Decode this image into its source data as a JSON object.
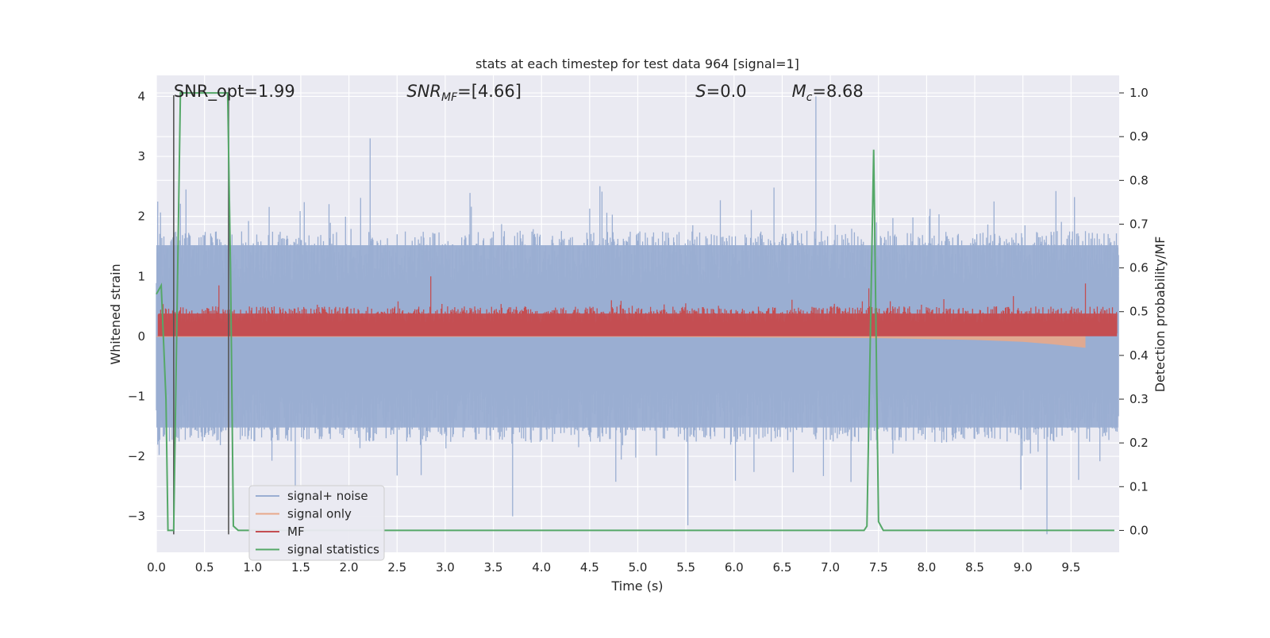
{
  "chart_data": {
    "type": "line",
    "title": "stats at each timestep for test data 964 [signal=1]",
    "xlabel": "Time (s)",
    "ylabel_left": "Whitened strain",
    "ylabel_right": "Detection probability/MF",
    "xlim": [
      0.0,
      10.0
    ],
    "ylim_left": [
      -3.6,
      4.35
    ],
    "ylim_right": [
      -0.05,
      1.04
    ],
    "x_ticks": [
      "0.0",
      "0.5",
      "1.0",
      "1.5",
      "2.0",
      "2.5",
      "3.0",
      "3.5",
      "4.0",
      "4.5",
      "5.0",
      "5.5",
      "6.0",
      "6.5",
      "7.0",
      "7.5",
      "8.0",
      "8.5",
      "9.0",
      "9.5"
    ],
    "y_ticks_left": [
      "−3",
      "−2",
      "−1",
      "0",
      "1",
      "2",
      "3",
      "4"
    ],
    "y_ticks_right": [
      "0.0",
      "0.1",
      "0.2",
      "0.3",
      "0.4",
      "0.5",
      "0.6",
      "0.7",
      "0.8",
      "0.9",
      "1.0"
    ],
    "grid": true,
    "legend_position": "lower-left",
    "annotations": [
      {
        "text": "SNR_opt=1.99",
        "x": 0.18,
        "y": 4.1
      },
      {
        "text": "SNR_MF=[4.66]",
        "x": 2.6,
        "y": 4.1
      },
      {
        "text": "S=0.0",
        "x": 5.6,
        "y": 4.1
      },
      {
        "text": "M_c=8.68",
        "x": 6.6,
        "y": 4.1
      }
    ],
    "vertical_lines": [
      0.18,
      0.75
    ],
    "series": [
      {
        "name": "signal+ noise",
        "axis": "left",
        "color": "#9aaed2",
        "kind": "noise-band",
        "x_range": [
          0.0,
          10.0
        ],
        "amplitude_typical": 1.6,
        "peak_values": [
          {
            "x": 6.85,
            "y": 4.0
          },
          {
            "x": 2.22,
            "y": 3.3
          },
          {
            "x": 0.75,
            "y": -3.0
          },
          {
            "x": 5.52,
            "y": -3.15
          },
          {
            "x": 9.25,
            "y": -3.3
          },
          {
            "x": 3.7,
            "y": -3.0
          }
        ]
      },
      {
        "name": "signal only",
        "axis": "left",
        "color": "#e8a88a",
        "kind": "chirp",
        "points": [
          [
            0.0,
            0.0
          ],
          [
            2.0,
            0.0
          ],
          [
            5.0,
            0.0
          ],
          [
            7.5,
            -0.02
          ],
          [
            8.5,
            -0.05
          ],
          [
            9.0,
            -0.08
          ],
          [
            9.3,
            -0.12
          ],
          [
            9.65,
            -0.18
          ]
        ]
      },
      {
        "name": "MF",
        "axis": "left",
        "color": "#c44e52",
        "kind": "mf-band",
        "baseline": 0.0,
        "typical_max": 0.6,
        "peak_values": [
          {
            "x": 2.85,
            "y": 1.0
          },
          {
            "x": 7.4,
            "y": 0.8
          },
          {
            "x": 9.65,
            "y": 0.88
          },
          {
            "x": 0.65,
            "y": 0.85
          }
        ]
      },
      {
        "name": "signal statistics",
        "axis": "right",
        "color": "#55a868",
        "kind": "line",
        "points": [
          [
            0.0,
            0.54
          ],
          [
            0.05,
            0.56
          ],
          [
            0.1,
            0.3
          ],
          [
            0.12,
            0.0
          ],
          [
            0.18,
            0.0
          ],
          [
            0.25,
            1.0
          ],
          [
            0.5,
            1.0
          ],
          [
            0.74,
            1.0
          ],
          [
            0.77,
            0.6
          ],
          [
            0.8,
            0.01
          ],
          [
            0.85,
            0.0
          ],
          [
            7.35,
            0.0
          ],
          [
            7.38,
            0.01
          ],
          [
            7.45,
            0.87
          ],
          [
            7.5,
            0.02
          ],
          [
            7.55,
            0.0
          ],
          [
            9.95,
            0.0
          ]
        ]
      }
    ]
  }
}
